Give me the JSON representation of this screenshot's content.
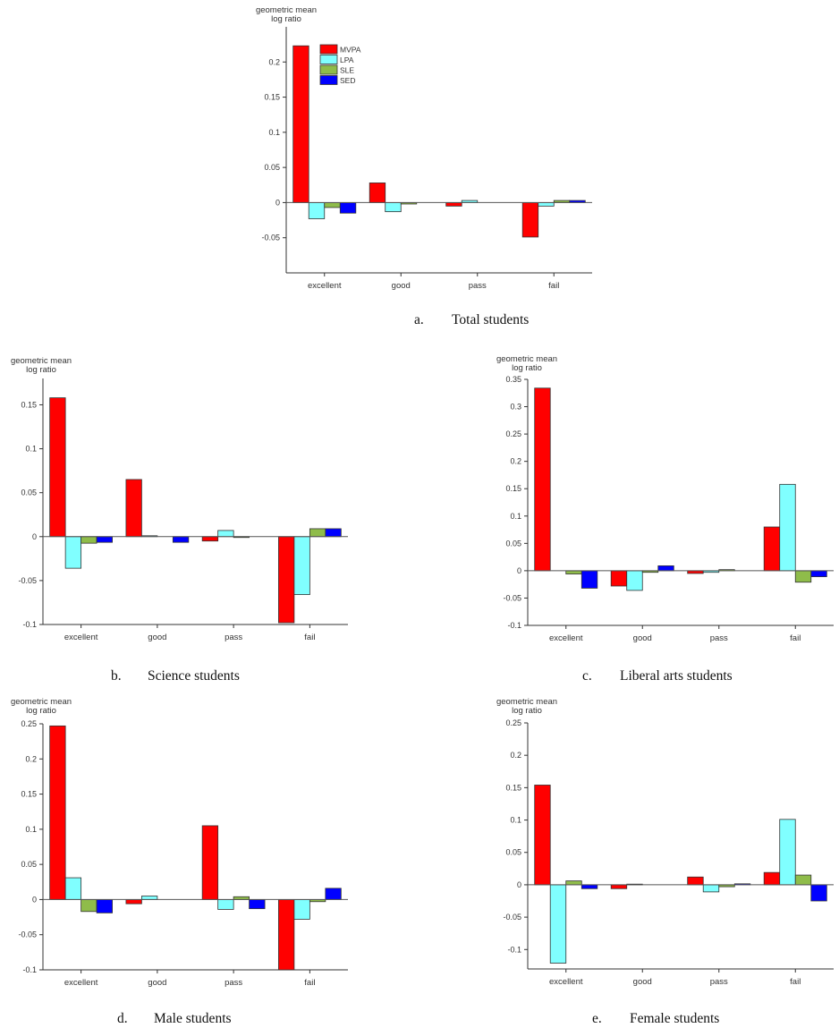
{
  "legend": {
    "labels": [
      "MVPA",
      "LPA",
      "SLE",
      "SED"
    ],
    "colors": [
      "#ff0000",
      "#80ffff",
      "#8fbc4a",
      "#0000ff"
    ]
  },
  "chart_data": [
    {
      "id": "a",
      "type": "bar",
      "caption_letter": "a.",
      "caption_text": "Total students",
      "ylabel_line1": "geometric mean",
      "ylabel_line2": "log ratio",
      "categories": [
        "excellent",
        "good",
        "pass",
        "fail"
      ],
      "yticks": [
        -0.05,
        0,
        0.05,
        0.1,
        0.15,
        0.2
      ],
      "ytick_labels": [
        "-0.05",
        "0",
        "0.05",
        "0.1",
        "0.15",
        "0.2"
      ],
      "ylim": [
        -0.1,
        0.25
      ],
      "legend": "top-left",
      "series": [
        {
          "name": "MVPA",
          "values": [
            0.223,
            0.028,
            -0.005,
            -0.049
          ]
        },
        {
          "name": "LPA",
          "values": [
            -0.023,
            -0.013,
            0.003,
            -0.005
          ]
        },
        {
          "name": "SLE",
          "values": [
            -0.007,
            -0.002,
            0.0,
            0.003
          ]
        },
        {
          "name": "SED",
          "values": [
            -0.015,
            0.0,
            0.0,
            0.003
          ]
        }
      ]
    },
    {
      "id": "b",
      "type": "bar",
      "caption_letter": "b.",
      "caption_text": "Science students",
      "ylabel_line1": "geometric mean",
      "ylabel_line2": "log ratio",
      "categories": [
        "excellent",
        "good",
        "pass",
        "fail"
      ],
      "yticks": [
        -0.1,
        -0.05,
        0,
        0.05,
        0.1,
        0.15
      ],
      "ytick_labels": [
        "-0.1",
        "-0.05",
        "0",
        "0.05",
        "0.1",
        "0.15"
      ],
      "ylim": [
        -0.1,
        0.18
      ],
      "series": [
        {
          "name": "MVPA",
          "values": [
            0.158,
            0.065,
            -0.005,
            -0.098
          ]
        },
        {
          "name": "LPA",
          "values": [
            -0.036,
            0.001,
            0.007,
            -0.066
          ]
        },
        {
          "name": "SLE",
          "values": [
            -0.0075,
            0.0,
            -0.001,
            0.009
          ]
        },
        {
          "name": "SED",
          "values": [
            -0.0065,
            -0.0065,
            0.0,
            0.009
          ]
        }
      ]
    },
    {
      "id": "c",
      "type": "bar",
      "caption_letter": "c.",
      "caption_text": "Liberal arts students",
      "ylabel_line1": "geometric mean",
      "ylabel_line2": "log ratio",
      "categories": [
        "excellent",
        "good",
        "pass",
        "fail"
      ],
      "yticks": [
        -0.1,
        -0.05,
        0,
        0.05,
        0.1,
        0.15,
        0.2,
        0.25,
        0.3,
        0.35
      ],
      "ytick_labels": [
        "-0.1",
        "-0.05",
        "0",
        "0.05",
        "0.1",
        "0.15",
        "0.2",
        "0.25",
        "0.3",
        "0.35"
      ],
      "ylim": [
        -0.1,
        0.35
      ],
      "series": [
        {
          "name": "MVPA",
          "values": [
            0.334,
            -0.028,
            -0.005,
            0.08
          ]
        },
        {
          "name": "LPA",
          "values": [
            0.0,
            -0.036,
            -0.003,
            0.158
          ]
        },
        {
          "name": "SLE",
          "values": [
            -0.006,
            -0.003,
            0.002,
            -0.021
          ]
        },
        {
          "name": "SED",
          "values": [
            -0.032,
            0.009,
            0.0,
            -0.011
          ]
        }
      ]
    },
    {
      "id": "d",
      "type": "bar",
      "caption_letter": "d.",
      "caption_text": "Male students",
      "ylabel_line1": "geometric mean",
      "ylabel_line2": "log ratio",
      "categories": [
        "excellent",
        "good",
        "pass",
        "fail"
      ],
      "yticks": [
        -0.1,
        -0.05,
        0,
        0.05,
        0.1,
        0.15,
        0.2,
        0.25
      ],
      "ytick_labels": [
        "-0.1",
        "-0.05",
        "0",
        "0.05",
        "0.1",
        "0.15",
        "0.2",
        "0.25"
      ],
      "ylim": [
        -0.1,
        0.25
      ],
      "series": [
        {
          "name": "MVPA",
          "values": [
            0.247,
            -0.006,
            0.105,
            -0.1
          ]
        },
        {
          "name": "LPA",
          "values": [
            0.031,
            0.005,
            -0.014,
            -0.028
          ]
        },
        {
          "name": "SLE",
          "values": [
            -0.017,
            0.0,
            0.004,
            -0.003
          ]
        },
        {
          "name": "SED",
          "values": [
            -0.019,
            0.0,
            -0.013,
            0.016
          ]
        }
      ]
    },
    {
      "id": "e",
      "type": "bar",
      "caption_letter": "e.",
      "caption_text": "Female students",
      "ylabel_line1": "geometric mean",
      "ylabel_line2": "log ratio",
      "categories": [
        "excellent",
        "good",
        "pass",
        "fail"
      ],
      "yticks": [
        -0.1,
        -0.05,
        0,
        0.05,
        0.1,
        0.15,
        0.2,
        0.25
      ],
      "ytick_labels": [
        "-0.1",
        "-0.05",
        "0",
        "0.05",
        "0.1",
        "0.15",
        "0.2",
        "0.25"
      ],
      "ylim": [
        -0.13,
        0.25
      ],
      "series": [
        {
          "name": "MVPA",
          "values": [
            0.154,
            -0.006,
            0.012,
            0.019
          ]
        },
        {
          "name": "LPA",
          "values": [
            -0.121,
            0.001,
            -0.011,
            0.101
          ]
        },
        {
          "name": "SLE",
          "values": [
            0.006,
            0.0,
            -0.003,
            0.015
          ]
        },
        {
          "name": "SED",
          "values": [
            -0.006,
            0.0,
            0.0015,
            -0.025
          ]
        }
      ]
    }
  ]
}
